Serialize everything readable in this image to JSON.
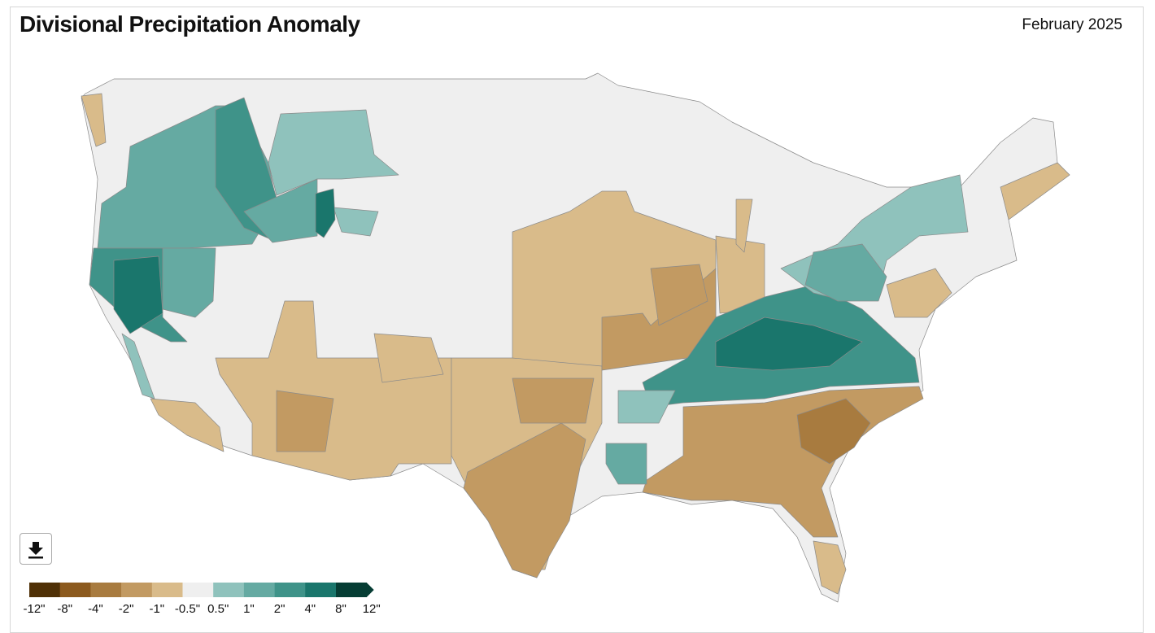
{
  "header": {
    "title": "Divisional Precipitation Anomaly",
    "date": "February 2025"
  },
  "legend": {
    "colors": [
      "#4f3006",
      "#8c5a1e",
      "#a87b3f",
      "#c29a62",
      "#d9bb8a",
      "#efefef",
      "#8fc2bc",
      "#65aaa2",
      "#3f9389",
      "#1a766c",
      "#063d34"
    ],
    "labels": [
      "-12\"",
      "-8\"",
      "-4\"",
      "-2\"",
      "-1\"",
      "-0.5\"",
      "0.5\"",
      "1\"",
      "2\"",
      "4\"",
      "8\"",
      "12\""
    ]
  }
}
